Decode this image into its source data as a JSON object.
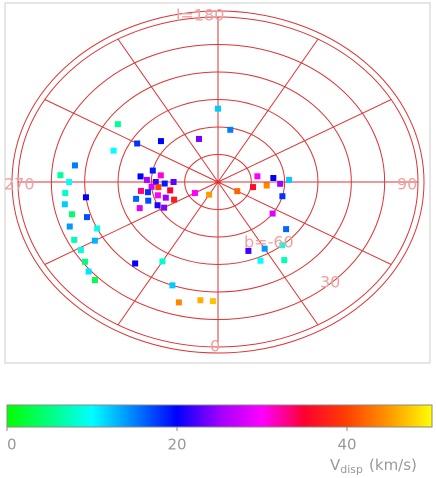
{
  "chart_data": {
    "type": "scatter",
    "labels": {
      "top": "l=180",
      "left": "270",
      "right": "90",
      "bottom": "0",
      "inner_ring": "b=-60",
      "ring": "30"
    },
    "x": [
      270,
      275,
      280,
      285,
      290,
      272,
      278,
      295,
      268,
      282,
      288,
      276,
      265,
      300,
      292,
      262,
      284,
      270,
      296,
      258,
      300,
      330,
      60,
      80,
      85,
      88,
      95,
      75,
      100,
      92,
      267,
      270,
      275,
      280,
      285,
      290,
      296,
      301,
      306,
      310,
      314,
      262,
      278,
      288,
      295,
      300,
      353,
      358,
      345,
      340,
      320,
      330,
      24,
      30,
      40,
      50,
      20,
      35,
      55,
      169,
      229,
      200,
      240,
      250,
      235,
      180
    ],
    "y": [
      -62,
      -60,
      -58,
      -62,
      -65,
      -66,
      -55,
      -60,
      -58,
      -68,
      -57,
      -63,
      -55,
      -62,
      -52,
      -64,
      -52,
      -70,
      -68,
      -60,
      -78,
      -82,
      -80,
      -74,
      -68,
      -62,
      -65,
      -60,
      -72,
      -58,
      -19,
      -23,
      -21,
      -20,
      -22,
      -19,
      -18,
      -18,
      -16,
      -14,
      -13,
      -25,
      -30,
      -28,
      -30,
      -26,
      -25,
      -25,
      -22,
      -30,
      -32,
      -40,
      -43,
      -48,
      -45,
      -50,
      -50,
      -38,
      -60,
      -61,
      -56,
      -65,
      -48,
      -40,
      -35,
      -50
    ],
    "values": [
      22,
      28,
      18,
      30,
      25,
      19,
      33,
      21,
      26,
      35,
      17,
      40,
      20,
      24,
      28,
      31,
      16,
      23,
      37,
      19,
      30,
      45,
      42,
      36,
      44,
      25,
      20,
      18,
      30,
      12,
      6,
      10,
      8,
      12,
      4,
      14,
      7,
      9,
      5,
      11,
      3,
      15,
      20,
      17,
      9,
      13,
      46,
      47,
      44,
      12,
      20,
      8,
      10,
      14,
      9,
      16,
      22,
      7,
      28,
      15,
      20,
      24,
      18,
      10,
      6,
      12
    ],
    "ylim": [
      -90,
      0
    ],
    "b_grid": [
      0,
      -15,
      -30,
      -45,
      -60,
      -75
    ],
    "l_grid": [
      0,
      30,
      60,
      90,
      120,
      150,
      180,
      210,
      240,
      270,
      300,
      330
    ],
    "grid_color": "#dd3333",
    "colorbar": {
      "lim": [
        0,
        50
      ],
      "ticks": [
        0,
        20,
        40
      ],
      "label": "V",
      "label_subscript": "disp",
      "label_suffix": "(km/s)",
      "colors": [
        "#00ff00",
        "#00ff80",
        "#00ffff",
        "#0080ff",
        "#0000ff",
        "#a000ff",
        "#ff00ff",
        "#ff0030",
        "#ff4000",
        "#ff9900",
        "#ffff00"
      ]
    }
  }
}
